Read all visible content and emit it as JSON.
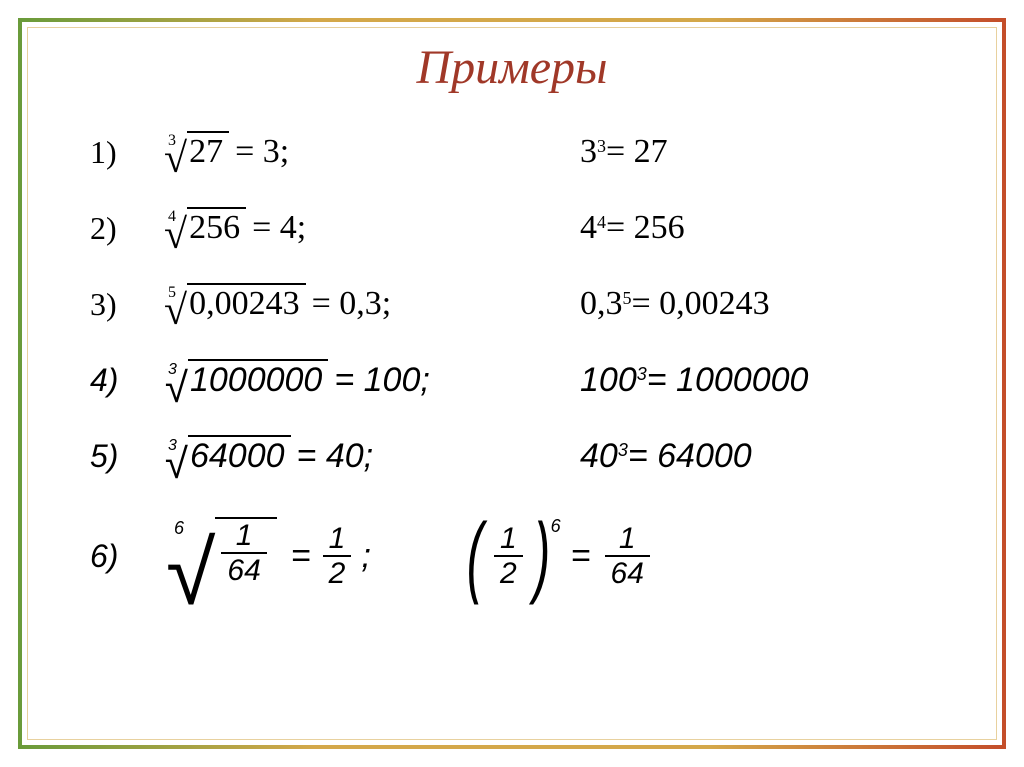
{
  "title": "Примеры",
  "text_color": "#000000",
  "title_color": "#a03828",
  "frame_colors": {
    "left": "#6a9b3a",
    "right": "#c44e2a",
    "mid": "#d4a84a"
  },
  "rows": [
    {
      "num": "1)",
      "root_index": "3",
      "radicand": "27",
      "eq_result": "3;",
      "verify_base": "3",
      "verify_exp": "3",
      "verify_result": "27",
      "italic": false
    },
    {
      "num": "2)",
      "root_index": "4",
      "radicand": "256",
      "eq_result": "4;",
      "verify_base": "4",
      "verify_exp": "4",
      "verify_result": "256",
      "italic": false
    },
    {
      "num": "3)",
      "root_index": "5",
      "radicand": "0,00243",
      "eq_result": "0,3;",
      "verify_base": "0,3",
      "verify_exp": "5",
      "verify_result": "0,00243",
      "italic": false
    },
    {
      "num": "4)",
      "root_index": "3",
      "radicand": "1000000",
      "eq_result": "100;",
      "verify_base": "100",
      "verify_exp": "3",
      "verify_result": "1000000",
      "italic": true
    },
    {
      "num": "5)",
      "root_index": "3",
      "radicand": "64000",
      "eq_result": "40;",
      "verify_base": "40",
      "verify_exp": "3",
      "verify_result": "64000",
      "italic": true
    }
  ],
  "row6": {
    "num": "6)",
    "root_index": "6",
    "frac_n": "1",
    "frac_d": "64",
    "eq_frac_n": "1",
    "eq_frac_d": "2",
    "semicolon": ";",
    "paren_frac_n": "1",
    "paren_frac_d": "2",
    "paren_exp": "6",
    "result_frac_n": "1",
    "result_frac_d": "64",
    "italic": true
  }
}
